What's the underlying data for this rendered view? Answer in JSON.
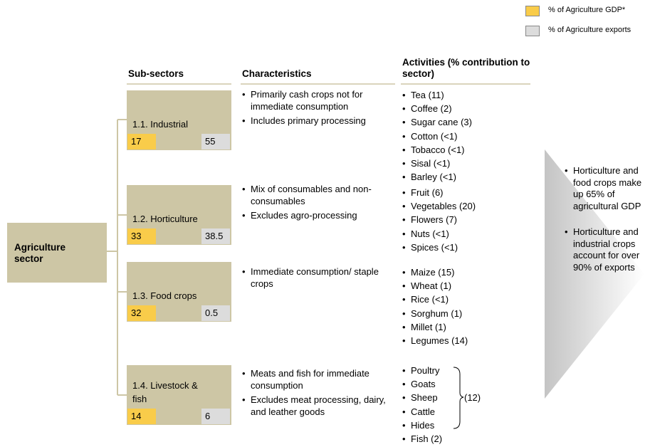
{
  "legend": [
    {
      "label": "% of Agriculture GDP*"
    },
    {
      "label": "% of Agriculture exports"
    }
  ],
  "headers": {
    "subsectors": "Sub-sectors",
    "characteristics": "Characteristics",
    "activities": "Activities (% contribution to sector)"
  },
  "root": {
    "label": "Agriculture sector"
  },
  "subsectors": [
    {
      "label": "1.1. Industrial",
      "gdp": 17,
      "exports": 55,
      "characteristics": [
        "Primarily cash crops not for immediate consumption",
        "Includes primary processing"
      ],
      "activities": [
        "Tea (11)",
        "Coffee (2)",
        "Sugar cane (3)",
        "Cotton (<1)",
        "Tobacco (<1)",
        "Sisal (<1)",
        "Barley (<1)"
      ]
    },
    {
      "label": "1.2. Horticulture",
      "gdp": 33,
      "exports": 38.5,
      "characteristics": [
        "Mix of consumables and non-consumables",
        "Excludes agro-processing"
      ],
      "activities": [
        "Fruit (6)",
        "Vegetables (20)",
        "Flowers (7)",
        "Nuts (<1)",
        "Spices (<1)"
      ]
    },
    {
      "label": "1.3. Food crops",
      "gdp": 32,
      "exports": 0.5,
      "characteristics": [
        "Immediate consumption/ staple crops"
      ],
      "activities": [
        "Maize (15)",
        "Wheat (1)",
        "Rice (<1)",
        "Sorghum (1)",
        "Millet (1)",
        "Legumes  (14)"
      ]
    },
    {
      "label": "1.4. Livestock & fish",
      "gdp": 14,
      "exports": 6,
      "characteristics": [
        "Meats and fish for immediate consumption",
        "Excludes meat processing, dairy, and leather goods"
      ],
      "activities_group": {
        "items": [
          "Poultry",
          "Goats",
          "Sheep",
          "Cattle",
          "Hides"
        ],
        "share": "(12)"
      },
      "activities": [
        "Fish (2)"
      ]
    }
  ],
  "summary": [
    "Horticulture and food crops make up 65% of agricultural GDP",
    "Horticulture and industrial crops account for over 90% of exports"
  ]
}
